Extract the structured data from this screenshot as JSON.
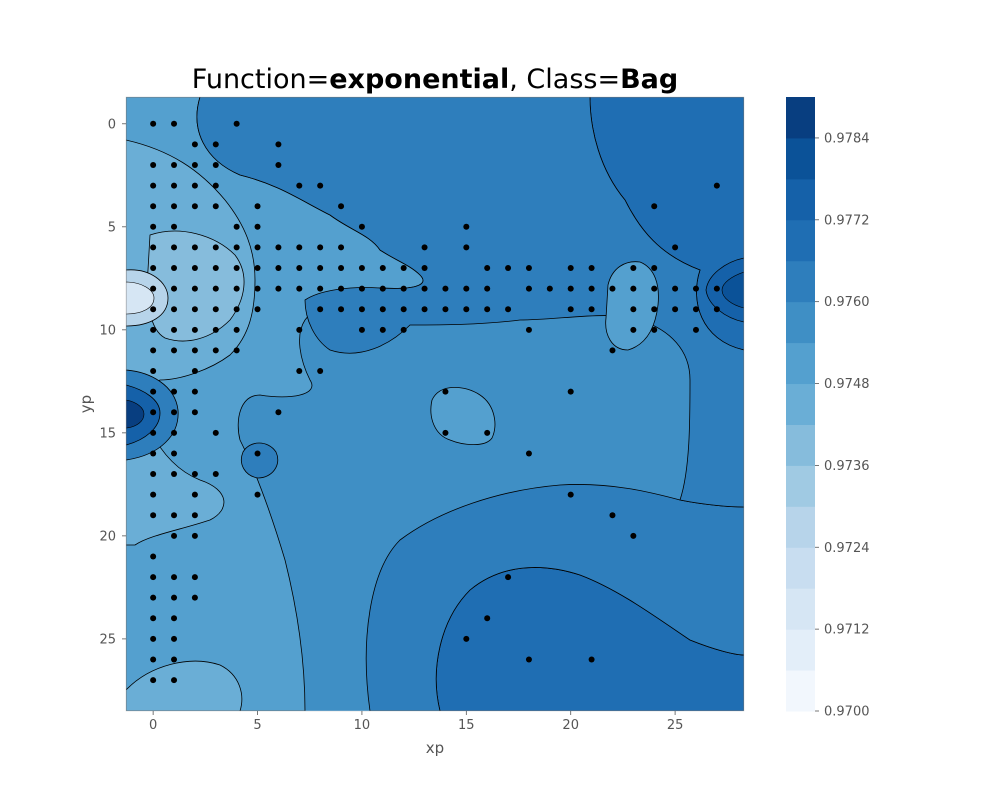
{
  "chart_data": {
    "type": "contour",
    "title": {
      "parts": [
        {
          "text": "Function=",
          "bold": false
        },
        {
          "text": "exponential",
          "bold": true
        },
        {
          "text": ", Class=",
          "bold": false
        },
        {
          "text": "Bag",
          "bold": true
        }
      ]
    },
    "xlabel": "xp",
    "ylabel": "yp",
    "xlim": [
      -1.3,
      28.3
    ],
    "ylim": [
      -1.3,
      28.5
    ],
    "y_inverted": true,
    "xticks": [
      0,
      5,
      10,
      15,
      20,
      25
    ],
    "yticks": [
      0,
      5,
      10,
      15,
      20,
      25
    ],
    "colormap": "Blues",
    "colorbar": {
      "min": 0.97,
      "max": 0.979,
      "level_step": 0.0006,
      "ticks": [
        "0.9700",
        "0.9712",
        "0.9724",
        "0.9736",
        "0.9748",
        "0.9760",
        "0.9772",
        "0.9784"
      ],
      "colors": [
        "#f2f7fd",
        "#e3eef9",
        "#d6e6f4",
        "#c8ddf0",
        "#b7d4ea",
        "#a0cae3",
        "#86bcdc",
        "#6aaed6",
        "#54a0cf",
        "#3f8fc5",
        "#2e7ebc",
        "#1f6eb3",
        "#1561a9",
        "#0b5298",
        "#083e80"
      ]
    },
    "regions": [
      {
        "name": "right-high-blob",
        "value": 0.9775
      },
      {
        "name": "upper-right-region",
        "value": 0.9769
      },
      {
        "name": "lower-right-region",
        "value": 0.9769
      },
      {
        "name": "left-deep-blob",
        "value": 0.9781
      },
      {
        "name": "left-pale-blob",
        "value": 0.9715
      },
      {
        "name": "center-light-blob",
        "value": 0.9748
      }
    ],
    "points": [
      [
        0,
        0
      ],
      [
        1,
        0
      ],
      [
        4,
        0
      ],
      [
        2,
        1
      ],
      [
        3,
        1
      ],
      [
        6,
        1
      ],
      [
        0,
        2
      ],
      [
        1,
        2
      ],
      [
        2,
        2
      ],
      [
        3,
        2
      ],
      [
        6,
        2
      ],
      [
        0,
        3
      ],
      [
        1,
        3
      ],
      [
        2,
        3
      ],
      [
        3,
        3
      ],
      [
        7,
        3
      ],
      [
        8,
        3
      ],
      [
        27,
        3
      ],
      [
        0,
        4
      ],
      [
        1,
        4
      ],
      [
        2,
        4
      ],
      [
        3,
        4
      ],
      [
        5,
        4
      ],
      [
        9,
        4
      ],
      [
        24,
        4
      ],
      [
        0,
        5
      ],
      [
        1,
        5
      ],
      [
        4,
        5
      ],
      [
        5,
        5
      ],
      [
        10,
        5
      ],
      [
        15,
        5
      ],
      [
        0,
        6
      ],
      [
        1,
        6
      ],
      [
        2,
        6
      ],
      [
        3,
        6
      ],
      [
        4,
        6
      ],
      [
        5,
        6
      ],
      [
        6,
        6
      ],
      [
        7,
        6
      ],
      [
        8,
        6
      ],
      [
        9,
        6
      ],
      [
        13,
        6
      ],
      [
        15,
        6
      ],
      [
        25,
        6
      ],
      [
        0,
        7
      ],
      [
        1,
        7
      ],
      [
        2,
        7
      ],
      [
        3,
        7
      ],
      [
        4,
        7
      ],
      [
        5,
        7
      ],
      [
        6,
        7
      ],
      [
        7,
        7
      ],
      [
        8,
        7
      ],
      [
        9,
        7
      ],
      [
        10,
        7
      ],
      [
        11,
        7
      ],
      [
        12,
        7
      ],
      [
        13,
        7
      ],
      [
        16,
        7
      ],
      [
        17,
        7
      ],
      [
        18,
        7
      ],
      [
        20,
        7
      ],
      [
        21,
        7
      ],
      [
        23,
        7
      ],
      [
        24,
        7
      ],
      [
        0,
        8
      ],
      [
        1,
        8
      ],
      [
        2,
        8
      ],
      [
        3,
        8
      ],
      [
        4,
        8
      ],
      [
        5,
        8
      ],
      [
        6,
        8
      ],
      [
        7,
        8
      ],
      [
        8,
        8
      ],
      [
        9,
        8
      ],
      [
        10,
        8
      ],
      [
        11,
        8
      ],
      [
        12,
        8
      ],
      [
        13,
        8
      ],
      [
        14,
        8
      ],
      [
        15,
        8
      ],
      [
        16,
        8
      ],
      [
        18,
        8
      ],
      [
        19,
        8
      ],
      [
        20,
        8
      ],
      [
        21,
        8
      ],
      [
        22,
        8
      ],
      [
        23,
        8
      ],
      [
        24,
        8
      ],
      [
        25,
        8
      ],
      [
        26,
        8
      ],
      [
        27,
        8
      ],
      [
        0,
        9
      ],
      [
        1,
        9
      ],
      [
        2,
        9
      ],
      [
        3,
        9
      ],
      [
        4,
        9
      ],
      [
        5,
        9
      ],
      [
        8,
        9
      ],
      [
        9,
        9
      ],
      [
        10,
        9
      ],
      [
        11,
        9
      ],
      [
        12,
        9
      ],
      [
        13,
        9
      ],
      [
        14,
        9
      ],
      [
        15,
        9
      ],
      [
        16,
        9
      ],
      [
        17,
        9
      ],
      [
        20,
        9
      ],
      [
        21,
        9
      ],
      [
        23,
        9
      ],
      [
        24,
        9
      ],
      [
        25,
        9
      ],
      [
        26,
        9
      ],
      [
        27,
        9
      ],
      [
        0,
        10
      ],
      [
        1,
        10
      ],
      [
        2,
        10
      ],
      [
        3,
        10
      ],
      [
        4,
        10
      ],
      [
        7,
        10
      ],
      [
        10,
        10
      ],
      [
        11,
        10
      ],
      [
        12,
        10
      ],
      [
        18,
        10
      ],
      [
        23,
        10
      ],
      [
        24,
        10
      ],
      [
        26,
        10
      ],
      [
        0,
        11
      ],
      [
        1,
        11
      ],
      [
        2,
        11
      ],
      [
        3,
        11
      ],
      [
        4,
        11
      ],
      [
        22,
        11
      ],
      [
        0,
        12
      ],
      [
        2,
        12
      ],
      [
        7,
        12
      ],
      [
        8,
        12
      ],
      [
        0,
        13
      ],
      [
        1,
        13
      ],
      [
        2,
        13
      ],
      [
        14,
        13
      ],
      [
        20,
        13
      ],
      [
        0,
        14
      ],
      [
        1,
        14
      ],
      [
        2,
        14
      ],
      [
        6,
        14
      ],
      [
        0,
        15
      ],
      [
        1,
        15
      ],
      [
        3,
        15
      ],
      [
        14,
        15
      ],
      [
        16,
        15
      ],
      [
        0,
        16
      ],
      [
        1,
        16
      ],
      [
        5,
        16
      ],
      [
        18,
        16
      ],
      [
        0,
        17
      ],
      [
        1,
        17
      ],
      [
        2,
        17
      ],
      [
        3,
        17
      ],
      [
        0,
        18
      ],
      [
        2,
        18
      ],
      [
        5,
        18
      ],
      [
        20,
        18
      ],
      [
        0,
        19
      ],
      [
        1,
        19
      ],
      [
        2,
        19
      ],
      [
        22,
        19
      ],
      [
        1,
        20
      ],
      [
        2,
        20
      ],
      [
        23,
        20
      ],
      [
        0,
        21
      ],
      [
        0,
        22
      ],
      [
        1,
        22
      ],
      [
        2,
        22
      ],
      [
        17,
        22
      ],
      [
        0,
        23
      ],
      [
        1,
        23
      ],
      [
        2,
        23
      ],
      [
        0,
        24
      ],
      [
        1,
        24
      ],
      [
        16,
        24
      ],
      [
        0,
        25
      ],
      [
        1,
        25
      ],
      [
        15,
        25
      ],
      [
        0,
        26
      ],
      [
        1,
        26
      ],
      [
        18,
        26
      ],
      [
        21,
        26
      ],
      [
        0,
        27
      ],
      [
        1,
        27
      ]
    ]
  }
}
